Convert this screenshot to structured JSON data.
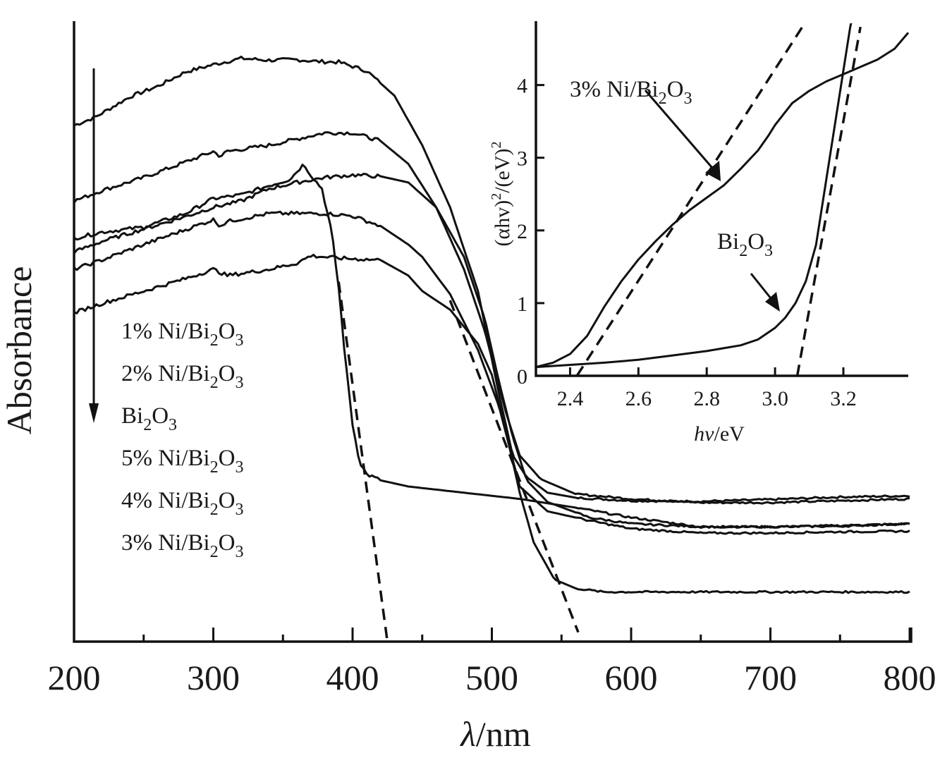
{
  "chart_data": [
    {
      "id": "main",
      "type": "line",
      "title": "",
      "xlabel": "λ/nm",
      "ylabel": "Absorbance",
      "xlim": [
        200,
        800
      ],
      "ylim": [
        0,
        1
      ],
      "y_units": "arbitrary (normalized, no ticks shown)",
      "grid": false,
      "xticks": [
        200,
        300,
        400,
        500,
        600,
        700,
        800
      ],
      "xtick_labels": [
        "200",
        "300",
        "400",
        "500",
        "600",
        "700",
        "800"
      ],
      "minor_xticks": [
        250,
        350,
        450,
        550,
        650,
        750
      ],
      "legend": {
        "placement": "center-left",
        "order_note": "arrow pointing down indicates order from top curve to bottom curve",
        "entries": [
          {
            "label": "1% Ni/Bi",
            "sub1": "2",
            "mid": "O",
            "sub2": "3"
          },
          {
            "label": "2% Ni/Bi",
            "sub1": "2",
            "mid": "O",
            "sub2": "3"
          },
          {
            "label": "Bi",
            "sub1": "2",
            "mid": "O",
            "sub2": "3"
          },
          {
            "label": "5% Ni/Bi",
            "sub1": "2",
            "mid": "O",
            "sub2": "3"
          },
          {
            "label": "4% Ni/Bi",
            "sub1": "2",
            "mid": "O",
            "sub2": "3"
          },
          {
            "label": "3% Ni/Bi",
            "sub1": "2",
            "mid": "O",
            "sub2": "3"
          }
        ]
      },
      "series": [
        {
          "name": "1% Ni/Bi2O3",
          "x": [
            200,
            215,
            240,
            260,
            280,
            300,
            320,
            340,
            360,
            375,
            390,
            410,
            430,
            450,
            470,
            490,
            505,
            515,
            525,
            540,
            560,
            600,
            650,
            700,
            750,
            800
          ],
          "y": [
            0.832,
            0.845,
            0.878,
            0.895,
            0.918,
            0.93,
            0.94,
            0.937,
            0.938,
            0.935,
            0.934,
            0.92,
            0.88,
            0.8,
            0.7,
            0.565,
            0.4,
            0.3,
            0.265,
            0.24,
            0.232,
            0.227,
            0.226,
            0.229,
            0.233,
            0.235
          ]
        },
        {
          "name": "2% Ni/Bi2O3",
          "x": [
            200,
            220,
            250,
            280,
            300,
            305,
            310,
            340,
            360,
            380,
            400,
            420,
            440,
            460,
            480,
            495,
            510,
            520,
            535,
            560,
            600,
            650,
            700,
            750,
            800
          ],
          "y": [
            0.71,
            0.727,
            0.748,
            0.773,
            0.79,
            0.782,
            0.79,
            0.8,
            0.81,
            0.82,
            0.82,
            0.807,
            0.77,
            0.7,
            0.6,
            0.5,
            0.37,
            0.3,
            0.262,
            0.238,
            0.23,
            0.224,
            0.224,
            0.227,
            0.23
          ]
        },
        {
          "name": "Bi2O3",
          "x": [
            200,
            220,
            250,
            280,
            300,
            320,
            340,
            355,
            365,
            370,
            378,
            385,
            390,
            395,
            400,
            405,
            410,
            420,
            440,
            480,
            520,
            560,
            600,
            650,
            700,
            750,
            800
          ],
          "y": [
            0.65,
            0.66,
            0.668,
            0.69,
            0.714,
            0.72,
            0.735,
            0.745,
            0.77,
            0.752,
            0.73,
            0.66,
            0.57,
            0.45,
            0.35,
            0.29,
            0.27,
            0.26,
            0.25,
            0.24,
            0.23,
            0.216,
            0.2,
            0.185,
            0.185,
            0.187,
            0.19
          ]
        },
        {
          "name": "5% Ni/Bi2O3",
          "x": [
            200,
            220,
            250,
            280,
            300,
            320,
            340,
            360,
            380,
            400,
            420,
            440,
            460,
            480,
            495,
            505,
            515,
            525,
            540,
            570,
            600,
            650,
            700,
            750,
            800
          ],
          "y": [
            0.628,
            0.645,
            0.665,
            0.685,
            0.7,
            0.71,
            0.73,
            0.74,
            0.748,
            0.752,
            0.75,
            0.74,
            0.7,
            0.62,
            0.52,
            0.42,
            0.33,
            0.26,
            0.225,
            0.2,
            0.19,
            0.185,
            0.185,
            0.186,
            0.19
          ]
        },
        {
          "name": "4% Ni/Bi2O3",
          "x": [
            200,
            220,
            250,
            280,
            300,
            305,
            310,
            340,
            360,
            380,
            400,
            420,
            440,
            450,
            470,
            490,
            505,
            520,
            540,
            570,
            600,
            650,
            700,
            750,
            800
          ],
          "y": [
            0.6,
            0.615,
            0.64,
            0.664,
            0.68,
            0.67,
            0.677,
            0.69,
            0.69,
            0.69,
            0.686,
            0.67,
            0.64,
            0.62,
            0.56,
            0.47,
            0.38,
            0.25,
            0.21,
            0.195,
            0.182,
            0.175,
            0.175,
            0.177,
            0.178
          ]
        },
        {
          "name": "3% Ni/Bi2O3",
          "x": [
            200,
            220,
            250,
            280,
            300,
            310,
            340,
            360,
            370,
            390,
            420,
            440,
            450,
            470,
            490,
            500,
            510,
            520,
            530,
            545,
            560,
            580,
            600,
            650,
            700,
            750,
            800
          ],
          "y": [
            0.53,
            0.545,
            0.565,
            0.585,
            0.6,
            0.59,
            0.6,
            0.61,
            0.622,
            0.618,
            0.615,
            0.59,
            0.565,
            0.535,
            0.48,
            0.43,
            0.34,
            0.24,
            0.16,
            0.1,
            0.086,
            0.08,
            0.08,
            0.08,
            0.08,
            0.08,
            0.08
          ]
        }
      ],
      "fit_lines": [
        {
          "name": "Bi2O3 tangent",
          "x": [
            390,
            425
          ],
          "y": [
            0.58,
            0.0
          ]
        },
        {
          "name": "3% Ni/Bi2O3 tangent",
          "x": [
            470,
            562
          ],
          "y": [
            0.55,
            0.015
          ]
        }
      ]
    },
    {
      "id": "inset",
      "type": "line",
      "title": "",
      "xlabel_italic": "hν",
      "xlabel_rest": "/eV",
      "ylabel": "(αhv)²/(eV)²",
      "ylabel_parts": {
        "base": "(αhv)",
        "sup1": "2",
        "mid": "/(eV)",
        "sup2": "2"
      },
      "xlim": [
        2.3,
        3.39
      ],
      "ylim": [
        0,
        4.85
      ],
      "grid": false,
      "xticks": [
        2.4,
        2.6,
        2.8,
        3.0,
        3.2
      ],
      "xtick_labels": [
        "2.4",
        "2.6",
        "2.8",
        "3.0",
        "3.2"
      ],
      "yticks": [
        0,
        1,
        2,
        3,
        4
      ],
      "ytick_labels": [
        "0",
        "1",
        "2",
        "3",
        "4"
      ],
      "series": [
        {
          "name": "3% Ni/Bi2O3",
          "x": [
            2.3,
            2.35,
            2.4,
            2.45,
            2.5,
            2.55,
            2.6,
            2.65,
            2.7,
            2.75,
            2.8,
            2.85,
            2.9,
            2.95,
            2.98,
            3.0,
            3.05,
            3.1,
            3.15,
            3.2,
            3.25,
            3.3,
            3.35,
            3.39
          ],
          "y": [
            0.12,
            0.18,
            0.3,
            0.55,
            0.95,
            1.3,
            1.6,
            1.85,
            2.08,
            2.28,
            2.45,
            2.62,
            2.85,
            3.1,
            3.3,
            3.45,
            3.75,
            3.92,
            4.05,
            4.15,
            4.25,
            4.35,
            4.5,
            4.72
          ]
        },
        {
          "name": "Bi2O3",
          "x": [
            2.3,
            2.4,
            2.5,
            2.6,
            2.7,
            2.8,
            2.9,
            2.95,
            3.0,
            3.03,
            3.06,
            3.09,
            3.12,
            3.14,
            3.16,
            3.18,
            3.2,
            3.22,
            3.24
          ],
          "y": [
            0.12,
            0.15,
            0.18,
            0.22,
            0.28,
            0.34,
            0.42,
            0.5,
            0.66,
            0.8,
            1.0,
            1.3,
            1.8,
            2.4,
            3.0,
            3.6,
            4.2,
            4.8,
            5.2
          ]
        }
      ],
      "fit_lines": [
        {
          "name": "3% Ni/Bi2O3 tangent",
          "x": [
            2.42,
            3.08
          ],
          "y": [
            0.0,
            4.8
          ]
        },
        {
          "name": "Bi2O3 tangent",
          "x": [
            3.065,
            3.25
          ],
          "y": [
            0.0,
            4.8
          ]
        }
      ],
      "annotations": [
        {
          "text": "3% Ni/Bi",
          "sub1": "2",
          "mid": "O",
          "sub2": "3",
          "points_to": "3% Ni/Bi2O3 curve near 2.83 eV"
        },
        {
          "text": "Bi",
          "sub1": "2",
          "mid": "O",
          "sub2": "3",
          "points_to": "Bi2O3 curve near 3.02 eV"
        }
      ]
    }
  ]
}
